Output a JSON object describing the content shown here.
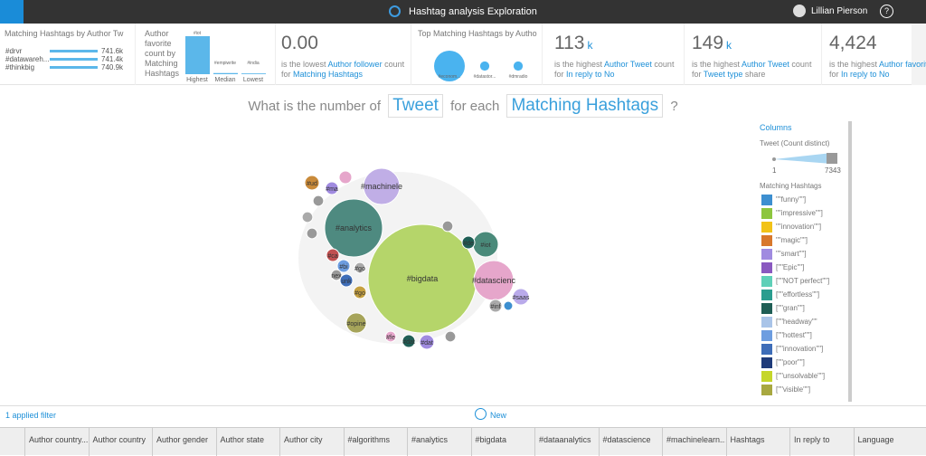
{
  "topbar": {
    "title": "Hashtag analysis Exploration",
    "user": "Lillian Pierson"
  },
  "cards": {
    "top_authors": {
      "title": "Matching Hashtags by Author Tw",
      "rows": [
        {
          "label": "#drvr",
          "value": 741600,
          "value_label": "741.6k"
        },
        {
          "label": "#datawareh...",
          "value": 741400,
          "value_label": "741.4k"
        },
        {
          "label": "#thinkbig",
          "value": 740900,
          "value_label": "740.9k"
        }
      ]
    },
    "favorite": {
      "title": "Author favorite count by Matching Hashtags",
      "bars": [
        {
          "tag": "#iot",
          "label": "Highest",
          "value": 100
        },
        {
          "tag": "#empiwrite",
          "label": "Median",
          "value": 3
        },
        {
          "tag": "#india",
          "label": "Lowest",
          "value": 2
        }
      ]
    },
    "lowest_follower": {
      "value": "0.00",
      "parts": [
        "is the lowest ",
        "Author follower",
        " count for ",
        "Matching Hashtags"
      ]
    },
    "top_bubbles": {
      "title": "Top Matching Hashtags by Autho",
      "bubbles": [
        {
          "label": "#econom...",
          "value": 100
        },
        {
          "label": "#datastor...",
          "value": 9
        },
        {
          "label": "#dmradio",
          "value": 9
        }
      ]
    },
    "stats": [
      {
        "value": "113",
        "unit": "k",
        "parts": [
          "is the highest ",
          "Author Tweet",
          " count for ",
          "In reply to No"
        ]
      },
      {
        "value": "149",
        "unit": "k",
        "parts": [
          "is the highest ",
          "Author Tweet",
          " count for ",
          "Tweet type",
          " share"
        ]
      },
      {
        "value": "4,424",
        "parts": [
          "is the highest ",
          "Author favorite",
          " count for ",
          "In reply to No"
        ]
      }
    ]
  },
  "question": {
    "pre": "What is the number of",
    "measure": "Tweet",
    "mid": "for each",
    "dimension": "Matching Hashtags",
    "post": "?"
  },
  "bubble_chart": {
    "max_value": 7343,
    "bubbles": [
      {
        "label": "#bigdata",
        "value": 7343,
        "color": "#b5d56a"
      },
      {
        "label": "#analytics",
        "value": 2090,
        "color": "#4e8a80"
      },
      {
        "label": "#machinele",
        "value": 820,
        "color": "#c0aee6"
      },
      {
        "label": "#datascienc",
        "value": 990,
        "color": "#e6a6cb"
      },
      {
        "label": "#iot",
        "value": 400,
        "color": "#4a8a7a"
      },
      {
        "label": "#opine",
        "value": 250,
        "color": "#a6a45a"
      },
      {
        "label": "#saas",
        "value": 165,
        "color": "#b9aaea"
      },
      {
        "label": "#ud",
        "value": 130,
        "color": "#c98a3a"
      },
      {
        "label": "#ma",
        "value": 100,
        "color": "#a08be0"
      },
      {
        "label": null,
        "value": 100,
        "color": "#e6a6cb"
      },
      {
        "label": null,
        "value": 70,
        "color": "#999999"
      },
      {
        "label": null,
        "value": 70,
        "color": "#aaaaaa"
      },
      {
        "label": null,
        "value": 70,
        "color": "#999999"
      },
      {
        "label": "#ca",
        "value": 100,
        "color": "#c05050"
      },
      {
        "label": "#bi",
        "value": 100,
        "color": "#6d9de0"
      },
      {
        "label": "nex",
        "value": 70,
        "color": "#999999"
      },
      {
        "label": "unk",
        "value": 100,
        "color": "#3e6db8"
      },
      {
        "label": "#go",
        "value": 70,
        "color": "#aaaaaa"
      },
      {
        "label": "#go",
        "value": 100,
        "color": "#c5a040"
      },
      {
        "label": "#fe",
        "value": 70,
        "color": "#e6a6cb"
      },
      {
        "label": "#dat",
        "value": 100,
        "color": "#1f5e55"
      },
      {
        "label": "#dat",
        "value": 130,
        "color": "#a08be0"
      },
      {
        "label": null,
        "value": 70,
        "color": "#999999"
      },
      {
        "label": "#de",
        "value": 100,
        "color": "#1f5e55"
      },
      {
        "label": "#inf",
        "value": 100,
        "color": "#aaaaaa"
      },
      {
        "label": null,
        "value": 50,
        "color": "#3d8fd0"
      },
      {
        "label": null,
        "value": 70,
        "color": "#999999"
      }
    ]
  },
  "panel": {
    "title": "Columns",
    "measure": "Tweet (Count distinct)",
    "range_min": 1,
    "range_max": 7343,
    "legend_title": "Matching Hashtags",
    "legend": [
      {
        "label": "\"\"funny\"\"]",
        "color": "#3d8fd0"
      },
      {
        "label": "\"\"impressive\"\"]",
        "color": "#8dc63f"
      },
      {
        "label": "\"\"innovation\"\"]",
        "color": "#f2c318"
      },
      {
        "label": "\"\"magic\"\"]",
        "color": "#d8782c"
      },
      {
        "label": "\"\"smart\"\"]",
        "color": "#a08be0"
      },
      {
        "label": "[\"\"Epic\"\"]",
        "color": "#8a59c0"
      },
      {
        "label": "[\"\"NOT perfect\"\"]",
        "color": "#5fd0b8"
      },
      {
        "label": "[\"\"effortless\"\"]",
        "color": "#2a9d8f"
      },
      {
        "label": "[\"\"gran\"\"]",
        "color": "#1f5e55"
      },
      {
        "label": "[\"\"headway\"\"",
        "color": "#a9c4e8"
      },
      {
        "label": "[\"\"hottest\"\"]",
        "color": "#6d9de0"
      },
      {
        "label": "[\"\"innovation\"\"]",
        "color": "#3e6db8"
      },
      {
        "label": "[\"\"poor\"\"]",
        "color": "#1f3b7a"
      },
      {
        "label": "[\"\"unsolvable\"\"]",
        "color": "#c5d62a"
      },
      {
        "label": "[\"\"visible\"\"]",
        "color": "#a8a840"
      }
    ]
  },
  "footer": {
    "filters": "1 applied filter",
    "new": "New",
    "columns": [
      "Author country...",
      "Author country",
      "Author gender",
      "Author state",
      "Author city",
      "#algorithms",
      "#analytics",
      "#bigdata",
      "#dataanalytics",
      "#datascience",
      "#machinelearn...",
      "Hashtags",
      "In reply to",
      "Language"
    ]
  }
}
